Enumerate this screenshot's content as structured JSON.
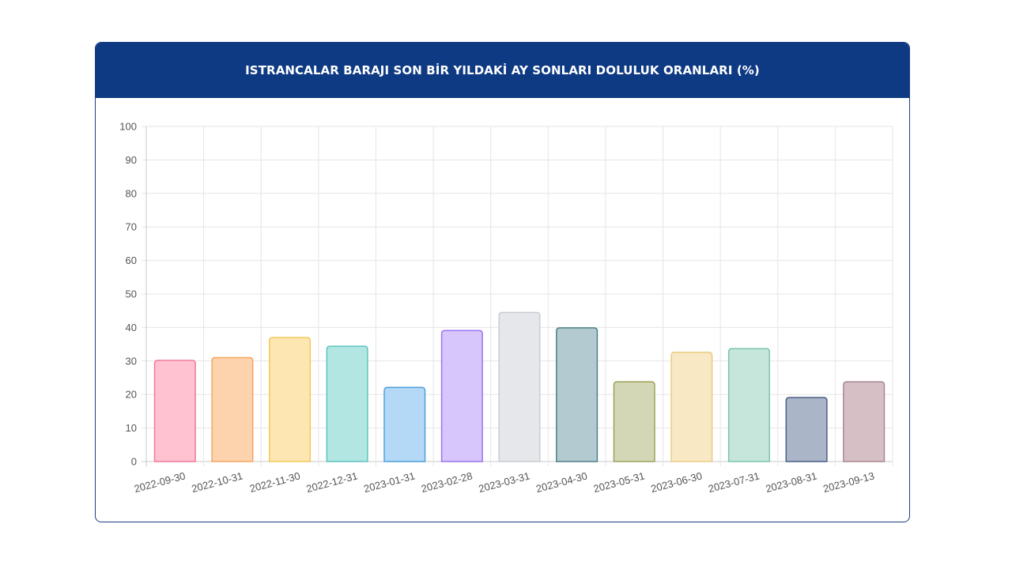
{
  "header": {
    "title": "ISTRANCALAR BARAJI SON BİR YILDAKİ AY SONLARI DOLULUK ORANLARI (%)"
  },
  "chart_data": {
    "type": "bar",
    "title": "ISTRANCALAR BARAJI SON BİR YILDAKİ AY SONLARI DOLULUK ORANLARI (%)",
    "xlabel": "",
    "ylabel": "",
    "ylim": [
      0,
      100
    ],
    "y_ticks": [
      0,
      10,
      20,
      30,
      40,
      50,
      60,
      70,
      80,
      90,
      100
    ],
    "grid": true,
    "legend": "none",
    "categories": [
      "2022-09-30",
      "2022-10-31",
      "2022-11-30",
      "2022-12-31",
      "2023-01-31",
      "2023-02-28",
      "2023-03-31",
      "2023-04-30",
      "2023-05-31",
      "2023-06-30",
      "2023-07-31",
      "2023-08-31",
      "2023-09-13"
    ],
    "values": [
      30.2,
      31.0,
      37.0,
      34.4,
      22.1,
      39.1,
      44.5,
      39.9,
      23.8,
      32.6,
      33.7,
      19.1,
      23.8
    ],
    "fill_colors": [
      "#ffc2d0",
      "#fdd3ad",
      "#fde6b1",
      "#b2e6e3",
      "#b3d9f6",
      "#d6c6fb",
      "#e6e7ea",
      "#b3cbd0",
      "#d3d7b5",
      "#f8e8c3",
      "#c6e6dc",
      "#aab6c8",
      "#d6c0c6"
    ],
    "border_colors": [
      "#f27a99",
      "#f5a662",
      "#f1c95a",
      "#5ec4be",
      "#4f9fd9",
      "#9b74ef",
      "#c9cbd1",
      "#4d7f88",
      "#9ea25a",
      "#e9cd86",
      "#7cc3ad",
      "#4a5f83",
      "#a98591"
    ]
  }
}
